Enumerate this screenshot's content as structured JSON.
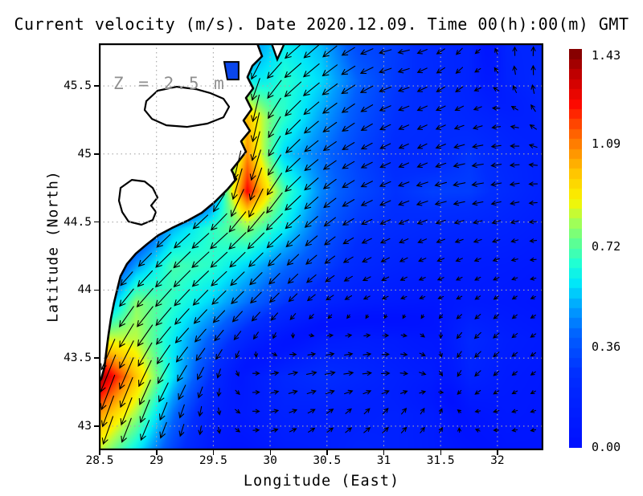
{
  "title": "Current velocity (m/s). Date 2020.12.09. Time 00(h):00(m) GMT",
  "annotation": "Z = 2.5 m",
  "axes": {
    "x_label": "Longitude (East)",
    "y_label": "Latitude (North)",
    "x_ticks": [
      28.5,
      29,
      29.5,
      30,
      30.5,
      31,
      31.5,
      32
    ],
    "x_tick_labels": [
      "28.5",
      "29",
      "29.5",
      "30",
      "30.5",
      "31",
      "31.5",
      "32"
    ],
    "y_ticks": [
      45.5,
      45,
      44.5,
      44,
      43.5,
      43
    ],
    "y_tick_labels": [
      "45.5",
      "45",
      "44.5",
      "44",
      "43.5",
      "43"
    ],
    "x_range": [
      28.493,
      32.404
    ],
    "y_range": [
      42.823,
      45.813
    ],
    "grid": "dotted"
  },
  "colorbar": {
    "tick_values": [
      1.43,
      1.09,
      0.72,
      0.36,
      0.0
    ],
    "tick_labels": [
      "1.43",
      "1.09",
      "0.72",
      "0.36",
      "0.00"
    ],
    "min": 0.0,
    "max": 1.43,
    "bands": 40
  },
  "chart_data": {
    "type": "heatmap",
    "subtype": "ocean-current-vector-field",
    "title": "Current velocity (m/s). Date 2020.12.09. Time 00(h):00(m) GMT",
    "variable": "current speed",
    "units": "m/s",
    "depth_m": 2.5,
    "date": "2020.12.09",
    "time": "00(h):00(m) GMT",
    "vmin": 0.0,
    "vmax": 1.43,
    "lon": [
      28.493,
      28.819,
      29.145,
      29.471,
      29.797,
      30.123,
      30.448,
      30.774,
      31.1,
      31.426,
      31.752,
      32.078,
      32.404
    ],
    "lat": [
      45.813,
      45.541,
      45.269,
      44.997,
      44.725,
      44.454,
      44.182,
      43.91,
      43.638,
      43.366,
      43.094,
      42.823
    ],
    "u_eastward": [
      [
        0,
        0,
        0,
        -0.05,
        -0.3,
        -0.45,
        -0.4,
        -0.3,
        -0.3,
        -0.2,
        -0.1,
        0.0,
        0.02
      ],
      [
        0,
        0,
        0,
        -0.05,
        -0.15,
        -0.5,
        -0.45,
        -0.35,
        -0.28,
        -0.2,
        -0.12,
        -0.05,
        0.0
      ],
      [
        0,
        0,
        0,
        0.0,
        -0.1,
        -0.45,
        -0.4,
        -0.3,
        -0.25,
        -0.22,
        -0.18,
        -0.15,
        -0.1
      ],
      [
        0,
        0,
        0,
        -0.05,
        -0.2,
        -0.4,
        -0.35,
        -0.28,
        -0.22,
        -0.2,
        -0.28,
        -0.2,
        -0.15
      ],
      [
        0,
        0,
        0,
        -0.2,
        -0.35,
        -0.5,
        -0.35,
        -0.3,
        -0.25,
        -0.3,
        -0.3,
        -0.22,
        -0.15
      ],
      [
        0.05,
        -0.15,
        -0.4,
        -0.5,
        -0.55,
        -0.45,
        -0.3,
        -0.25,
        -0.22,
        -0.2,
        -0.18,
        -0.15,
        -0.12
      ],
      [
        -0.1,
        -0.35,
        -0.5,
        -0.5,
        -0.4,
        -0.3,
        -0.25,
        -0.2,
        -0.15,
        -0.12,
        -0.1,
        -0.1,
        -0.08
      ],
      [
        -0.2,
        -0.5,
        -0.45,
        -0.4,
        -0.3,
        -0.2,
        -0.15,
        -0.1,
        -0.08,
        -0.06,
        -0.08,
        -0.06,
        -0.05
      ],
      [
        -0.35,
        -0.45,
        -0.4,
        -0.25,
        -0.1,
        0.0,
        0.1,
        0.12,
        0.1,
        0.05,
        -0.15,
        -0.1,
        -0.08
      ],
      [
        -0.5,
        -0.4,
        -0.3,
        -0.1,
        0.1,
        0.2,
        0.25,
        0.2,
        0.15,
        0.1,
        -0.12,
        -0.08,
        -0.06
      ],
      [
        -0.35,
        -0.3,
        -0.15,
        0.0,
        0.1,
        0.15,
        0.12,
        0.1,
        0.1,
        0.05,
        -0.05,
        -0.08,
        -0.06
      ],
      [
        -0.25,
        -0.25,
        -0.1,
        0.0,
        0.05,
        0.1,
        0.1,
        0.15,
        0.12,
        0.08,
        0.0,
        -0.05,
        -0.05
      ]
    ],
    "v_northward": [
      [
        0,
        0,
        0,
        -0.1,
        -0.35,
        -0.4,
        -0.35,
        -0.15,
        -0.05,
        -0.1,
        -0.15,
        0.18,
        0.2
      ],
      [
        0,
        0,
        0,
        -0.1,
        -0.6,
        -0.45,
        -0.35,
        -0.2,
        -0.08,
        -0.12,
        -0.12,
        0.15,
        0.22
      ],
      [
        0,
        0,
        0,
        -0.1,
        -1.0,
        -0.5,
        -0.3,
        -0.2,
        -0.1,
        -0.1,
        -0.08,
        0.0,
        0.15
      ],
      [
        0,
        0,
        0,
        -0.2,
        -1.05,
        -0.4,
        -0.25,
        -0.15,
        -0.1,
        -0.1,
        -0.05,
        -0.02,
        0.05
      ],
      [
        0,
        0,
        0,
        -0.3,
        -1.2,
        -0.5,
        -0.3,
        -0.15,
        -0.1,
        -0.08,
        -0.05,
        -0.05,
        0.0
      ],
      [
        -0.1,
        -0.2,
        -0.35,
        -0.45,
        -0.55,
        -0.4,
        -0.25,
        -0.12,
        -0.1,
        -0.08,
        -0.05,
        -0.05,
        0.0
      ],
      [
        -0.15,
        -0.35,
        -0.5,
        -0.45,
        -0.4,
        -0.3,
        -0.2,
        -0.1,
        -0.08,
        -0.05,
        -0.05,
        -0.03,
        0.0
      ],
      [
        -0.35,
        -0.6,
        -0.5,
        -0.4,
        -0.3,
        -0.2,
        -0.1,
        -0.05,
        -0.03,
        -0.02,
        -0.05,
        -0.05,
        -0.02
      ],
      [
        -0.8,
        -0.7,
        -0.45,
        -0.3,
        -0.15,
        -0.05,
        0.02,
        0.02,
        0.0,
        -0.05,
        -0.15,
        -0.08,
        -0.05
      ],
      [
        -1.3,
        -0.9,
        -0.5,
        -0.25,
        0.0,
        0.05,
        0.05,
        0.03,
        0.0,
        -0.05,
        -0.12,
        -0.06,
        -0.04
      ],
      [
        -1.0,
        -0.75,
        -0.4,
        -0.15,
        -0.02,
        0.05,
        0.08,
        0.1,
        0.12,
        0.1,
        0.0,
        -0.02,
        -0.02
      ],
      [
        -0.8,
        -0.55,
        -0.3,
        -0.1,
        0.0,
        0.05,
        0.08,
        0.1,
        0.1,
        0.08,
        0.05,
        0.0,
        0.0
      ]
    ],
    "colormap_stops": [
      [
        0.0,
        0,
        15,
        255
      ],
      [
        0.18,
        0,
        45,
        255
      ],
      [
        0.28,
        0,
        95,
        255
      ],
      [
        0.35,
        0,
        160,
        255
      ],
      [
        0.41,
        0,
        230,
        250
      ],
      [
        0.46,
        30,
        255,
        215
      ],
      [
        0.52,
        100,
        255,
        140
      ],
      [
        0.57,
        170,
        255,
        80
      ],
      [
        0.62,
        250,
        245,
        0
      ],
      [
        0.68,
        255,
        205,
        0
      ],
      [
        0.73,
        255,
        160,
        0
      ],
      [
        0.8,
        255,
        85,
        0
      ],
      [
        0.86,
        255,
        10,
        0
      ],
      [
        0.93,
        200,
        0,
        0
      ],
      [
        1.0,
        122,
        0,
        0
      ]
    ]
  },
  "map": {
    "land_color": "#ffffff",
    "coast_color": "#000000",
    "estuary_fill": "#0a46ec",
    "coast": [
      [
        29.886,
        45.813
      ],
      [
        29.929,
        45.718
      ],
      [
        29.844,
        45.647
      ],
      [
        29.801,
        45.565
      ],
      [
        29.851,
        45.482
      ],
      [
        29.787,
        45.412
      ],
      [
        29.837,
        45.329
      ],
      [
        29.766,
        45.246
      ],
      [
        29.822,
        45.17
      ],
      [
        29.745,
        45.093
      ],
      [
        29.787,
        45.017
      ],
      [
        29.723,
        44.946
      ],
      [
        29.66,
        44.881
      ],
      [
        29.702,
        44.816
      ],
      [
        29.624,
        44.739
      ],
      [
        29.518,
        44.651
      ],
      [
        29.398,
        44.568
      ],
      [
        29.271,
        44.509
      ],
      [
        29.136,
        44.456
      ],
      [
        29.016,
        44.403
      ],
      [
        28.917,
        44.338
      ],
      [
        28.818,
        44.268
      ],
      [
        28.74,
        44.191
      ],
      [
        28.684,
        44.103
      ],
      [
        28.656,
        44.008
      ],
      [
        28.627,
        43.908
      ],
      [
        28.599,
        43.79
      ],
      [
        28.578,
        43.672
      ],
      [
        28.557,
        43.536
      ],
      [
        28.542,
        43.43
      ],
      [
        28.514,
        43.348
      ],
      [
        28.493,
        43.324
      ],
      [
        28.493,
        45.813
      ]
    ],
    "islet": [
      [
        30.013,
        45.813
      ],
      [
        30.126,
        45.813
      ],
      [
        30.063,
        45.695
      ]
    ],
    "lagoons": [
      [
        [
          28.91,
          45.388
        ],
        [
          29.009,
          45.465
        ],
        [
          29.179,
          45.494
        ],
        [
          29.349,
          45.476
        ],
        [
          29.476,
          45.447
        ],
        [
          29.589,
          45.406
        ],
        [
          29.639,
          45.347
        ],
        [
          29.589,
          45.27
        ],
        [
          29.448,
          45.223
        ],
        [
          29.271,
          45.199
        ],
        [
          29.087,
          45.211
        ],
        [
          28.96,
          45.258
        ],
        [
          28.896,
          45.323
        ]
      ],
      [
        [
          28.684,
          44.751
        ],
        [
          28.783,
          44.81
        ],
        [
          28.896,
          44.798
        ],
        [
          28.967,
          44.751
        ],
        [
          29.009,
          44.68
        ],
        [
          28.953,
          44.621
        ],
        [
          28.995,
          44.574
        ],
        [
          28.967,
          44.515
        ],
        [
          28.868,
          44.48
        ],
        [
          28.755,
          44.503
        ],
        [
          28.698,
          44.574
        ],
        [
          28.67,
          44.657
        ]
      ]
    ],
    "estuary_cell": [
      [
        29.596,
        45.677
      ],
      [
        29.723,
        45.677
      ],
      [
        29.723,
        45.547
      ],
      [
        29.624,
        45.547
      ]
    ]
  }
}
